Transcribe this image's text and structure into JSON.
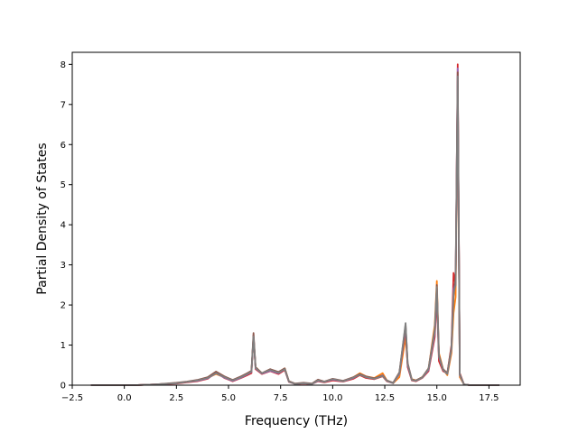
{
  "chart_data": {
    "type": "line",
    "title": "",
    "xlabel": "Frequency (THz)",
    "ylabel": "Partial Density of States",
    "xlim": [
      -2.5,
      19.0
    ],
    "ylim": [
      0,
      8.3
    ],
    "xticks": [
      -2.5,
      0.0,
      2.5,
      5.0,
      7.5,
      10.0,
      12.5,
      15.0,
      17.5
    ],
    "xtick_labels": [
      "−2.5",
      "0.0",
      "2.5",
      "5.0",
      "7.5",
      "10.0",
      "12.5",
      "15.0",
      "17.5"
    ],
    "yticks": [
      0,
      1,
      2,
      3,
      4,
      5,
      6,
      7,
      8
    ],
    "ytick_labels": [
      "0",
      "1",
      "2",
      "3",
      "4",
      "5",
      "6",
      "7",
      "8"
    ],
    "grid": false,
    "legend": "none",
    "series": [
      {
        "color": "#ff7f0e",
        "x": [
          -1.6,
          0.5,
          1.5,
          2.5,
          3.0,
          3.5,
          4.0,
          4.4,
          4.8,
          5.2,
          5.6,
          5.9,
          6.1,
          6.2,
          6.3,
          6.6,
          7.0,
          7.4,
          7.7,
          7.9,
          8.2,
          8.6,
          9.0,
          9.3,
          9.6,
          10.0,
          10.5,
          11.0,
          11.3,
          11.6,
          12.0,
          12.4,
          12.6,
          12.9,
          13.2,
          13.5,
          13.6,
          13.8,
          14.0,
          14.3,
          14.6,
          14.9,
          15.0,
          15.1,
          15.3,
          15.5,
          15.7,
          15.8,
          15.9,
          16.0,
          16.1,
          16.3,
          16.6,
          17.0,
          18.0
        ],
        "values": [
          0,
          0,
          0.02,
          0.05,
          0.08,
          0.12,
          0.18,
          0.28,
          0.2,
          0.12,
          0.2,
          0.28,
          0.35,
          1.15,
          0.45,
          0.3,
          0.38,
          0.32,
          0.42,
          0.1,
          0.03,
          0.05,
          0.03,
          0.12,
          0.08,
          0.15,
          0.1,
          0.2,
          0.3,
          0.22,
          0.18,
          0.3,
          0.12,
          0.05,
          0.2,
          1.2,
          0.5,
          0.15,
          0.12,
          0.2,
          0.4,
          1.5,
          2.6,
          0.8,
          0.4,
          0.25,
          0.8,
          1.8,
          2.2,
          7.6,
          0.2,
          0.02,
          0,
          0,
          0
        ]
      },
      {
        "color": "#d62728",
        "x": [
          -1.6,
          0.5,
          1.5,
          2.5,
          3.0,
          3.5,
          4.0,
          4.4,
          4.8,
          5.2,
          5.6,
          5.9,
          6.1,
          6.2,
          6.3,
          6.6,
          7.0,
          7.4,
          7.7,
          7.9,
          8.2,
          8.6,
          9.0,
          9.3,
          9.6,
          10.0,
          10.5,
          11.0,
          11.3,
          11.6,
          12.0,
          12.4,
          12.6,
          12.9,
          13.2,
          13.5,
          13.6,
          13.8,
          14.0,
          14.3,
          14.6,
          14.9,
          15.0,
          15.1,
          15.3,
          15.5,
          15.7,
          15.8,
          15.9,
          16.0,
          16.1,
          16.3,
          16.6,
          17.0,
          18.0
        ],
        "values": [
          0,
          0,
          0.02,
          0.04,
          0.07,
          0.1,
          0.16,
          0.32,
          0.18,
          0.1,
          0.18,
          0.25,
          0.3,
          1.25,
          0.4,
          0.28,
          0.35,
          0.28,
          0.38,
          0.08,
          0.03,
          0.04,
          0.03,
          0.1,
          0.07,
          0.12,
          0.09,
          0.16,
          0.25,
          0.18,
          0.15,
          0.22,
          0.1,
          0.05,
          0.3,
          1.4,
          0.45,
          0.12,
          0.1,
          0.18,
          0.35,
          1.2,
          2.2,
          0.6,
          0.35,
          0.3,
          1.0,
          2.8,
          2.5,
          8.0,
          0.3,
          0.02,
          0,
          0,
          0
        ]
      },
      {
        "color": "#9467bd",
        "x": [
          -1.6,
          0.5,
          1.5,
          2.5,
          3.0,
          3.5,
          4.0,
          4.4,
          4.8,
          5.2,
          5.6,
          5.9,
          6.1,
          6.2,
          6.3,
          6.6,
          7.0,
          7.4,
          7.7,
          7.9,
          8.2,
          8.6,
          9.0,
          9.3,
          9.6,
          10.0,
          10.5,
          11.0,
          11.3,
          11.6,
          12.0,
          12.4,
          12.6,
          12.9,
          13.2,
          13.5,
          13.6,
          13.8,
          14.0,
          14.3,
          14.6,
          14.9,
          15.0,
          15.1,
          15.3,
          15.5,
          15.7,
          15.8,
          15.9,
          16.0,
          16.1,
          16.3,
          16.6,
          17.0,
          18.0
        ],
        "values": [
          0,
          0,
          0.02,
          0.05,
          0.08,
          0.11,
          0.17,
          0.3,
          0.19,
          0.11,
          0.19,
          0.27,
          0.33,
          1.2,
          0.42,
          0.29,
          0.36,
          0.3,
          0.4,
          0.09,
          0.03,
          0.05,
          0.03,
          0.11,
          0.08,
          0.14,
          0.1,
          0.18,
          0.27,
          0.2,
          0.16,
          0.25,
          0.11,
          0.05,
          0.28,
          1.45,
          0.5,
          0.13,
          0.11,
          0.19,
          0.38,
          1.3,
          2.4,
          0.7,
          0.38,
          0.28,
          0.9,
          2.4,
          2.6,
          7.9,
          0.25,
          0.02,
          0,
          0,
          0
        ]
      },
      {
        "color": "#8c564b",
        "x": [
          -1.6,
          0.5,
          1.5,
          2.5,
          3.0,
          3.5,
          4.0,
          4.4,
          4.8,
          5.2,
          5.6,
          5.9,
          6.1,
          6.2,
          6.3,
          6.6,
          7.0,
          7.4,
          7.7,
          7.9,
          8.2,
          8.6,
          9.0,
          9.3,
          9.6,
          10.0,
          10.5,
          11.0,
          11.3,
          11.6,
          12.0,
          12.4,
          12.6,
          12.9,
          13.2,
          13.5,
          13.6,
          13.8,
          14.0,
          14.3,
          14.6,
          14.9,
          15.0,
          15.1,
          15.3,
          15.5,
          15.7,
          15.8,
          15.9,
          16.0,
          16.1,
          16.3,
          16.6,
          17.0,
          18.0
        ],
        "values": [
          0,
          0,
          0.02,
          0.06,
          0.09,
          0.13,
          0.2,
          0.34,
          0.22,
          0.13,
          0.22,
          0.3,
          0.36,
          1.3,
          0.45,
          0.3,
          0.4,
          0.33,
          0.42,
          0.1,
          0.04,
          0.06,
          0.04,
          0.14,
          0.09,
          0.16,
          0.11,
          0.2,
          0.28,
          0.22,
          0.17,
          0.24,
          0.12,
          0.06,
          0.32,
          1.5,
          0.55,
          0.14,
          0.12,
          0.2,
          0.42,
          1.4,
          2.5,
          0.75,
          0.4,
          0.3,
          0.95,
          2.2,
          2.7,
          7.8,
          0.28,
          0.02,
          0,
          0,
          0
        ]
      },
      {
        "color": "#7f7f7f",
        "x": [
          -1.6,
          0.5,
          1.5,
          2.5,
          3.0,
          3.5,
          4.0,
          4.4,
          4.8,
          5.2,
          5.6,
          5.9,
          6.1,
          6.2,
          6.3,
          6.6,
          7.0,
          7.4,
          7.7,
          7.9,
          8.2,
          8.6,
          9.0,
          9.3,
          9.6,
          10.0,
          10.5,
          11.0,
          11.3,
          11.6,
          12.0,
          12.4,
          12.6,
          12.9,
          13.2,
          13.5,
          13.6,
          13.8,
          14.0,
          14.3,
          14.6,
          14.9,
          15.0,
          15.1,
          15.3,
          15.5,
          15.7,
          15.8,
          15.9,
          16.0,
          16.1,
          16.3,
          16.6,
          17.0,
          18.0
        ],
        "values": [
          0,
          0,
          0.02,
          0.05,
          0.08,
          0.12,
          0.18,
          0.3,
          0.2,
          0.12,
          0.2,
          0.28,
          0.34,
          1.22,
          0.43,
          0.3,
          0.38,
          0.31,
          0.4,
          0.09,
          0.03,
          0.05,
          0.03,
          0.12,
          0.08,
          0.15,
          0.1,
          0.19,
          0.26,
          0.2,
          0.16,
          0.23,
          0.11,
          0.05,
          0.3,
          1.55,
          0.52,
          0.13,
          0.11,
          0.19,
          0.4,
          1.35,
          2.45,
          0.72,
          0.38,
          0.28,
          0.92,
          2.3,
          2.5,
          7.7,
          0.26,
          0.02,
          0,
          0,
          0
        ]
      }
    ]
  }
}
